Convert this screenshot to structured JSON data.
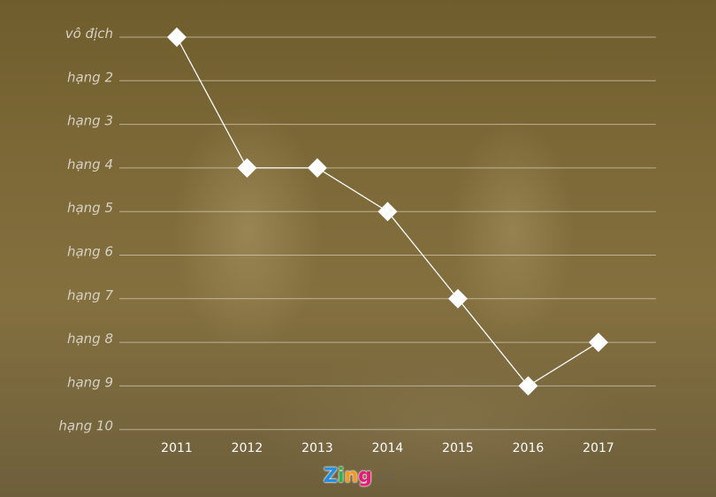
{
  "chart_data": {
    "type": "line",
    "categories": [
      "2011",
      "2012",
      "2013",
      "2014",
      "2015",
      "2016",
      "2017"
    ],
    "y_tick_labels": [
      "vô địch",
      "hạng 2",
      "hạng 3",
      "hạng 4",
      "hạng 5",
      "hạng 6",
      "hạng 7",
      "hạng 8",
      "hạng 9",
      "hạng 10"
    ],
    "values": [
      1,
      4,
      4,
      5,
      7,
      9,
      8
    ],
    "ylim": [
      1,
      10
    ],
    "y_inverted": true,
    "grid": true,
    "line_color": "#ffffff",
    "marker": "diamond"
  },
  "brand": {
    "logo_letters": [
      "Z",
      "i",
      "n",
      "g"
    ],
    "logo_colors": [
      "#1e90e8",
      "#2cb34a",
      "#f39a1d",
      "#e8197a"
    ],
    "domain_suffix": ".vn"
  }
}
